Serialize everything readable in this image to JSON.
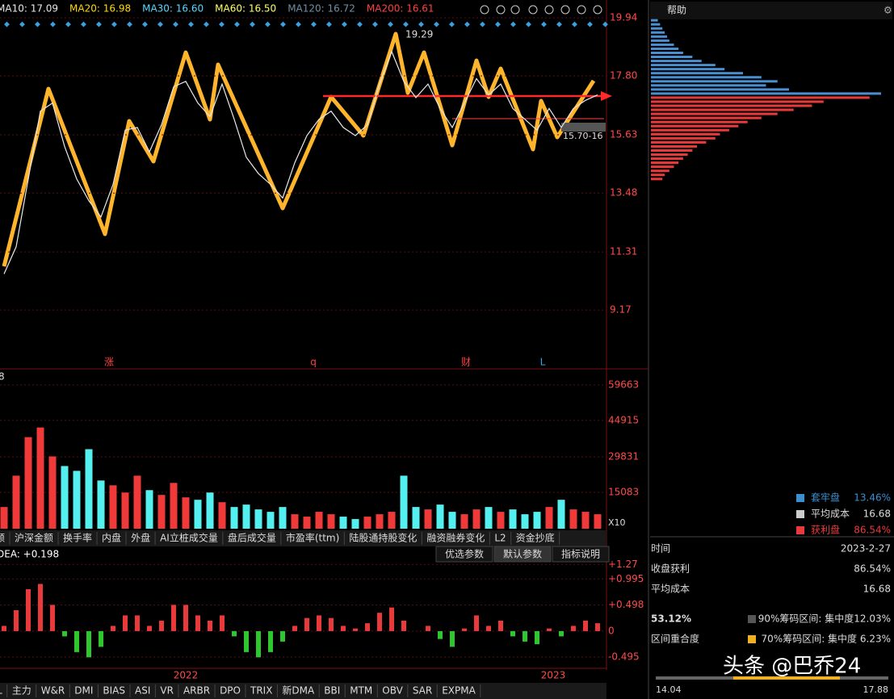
{
  "ma_legend": [
    {
      "label": "MA10: 17.09",
      "color": "#e8e8e8"
    },
    {
      "label": "MA20: 16.98",
      "color": "#ffd700"
    },
    {
      "label": "MA30: 16.60",
      "color": "#55d8ff"
    },
    {
      "label": "MA60: 16.50",
      "color": "#ffff66"
    },
    {
      "label": "MA120: 16.72",
      "color": "#6f8fa8"
    },
    {
      "label": "MA200: 16.61",
      "color": "#ff4040"
    }
  ],
  "price_axis": {
    "ylim": [
      7.06,
      20.45
    ],
    "yticks": [
      19.94,
      {
        "value": 17.8,
        "label": "17.80"
      },
      15.63,
      13.48,
      11.31,
      9.17
    ]
  },
  "price_panel": {
    "close": [
      10.5,
      11.5,
      14.0,
      16.5,
      16.8,
      15.2,
      14.0,
      13.2,
      12.6,
      13.8,
      15.8,
      15.9,
      15.0,
      16.0,
      17.4,
      17.6,
      16.8,
      16.3,
      17.5,
      16.2,
      14.8,
      14.2,
      13.8,
      13.3,
      14.6,
      15.6,
      16.2,
      16.5,
      15.9,
      15.6,
      16.0,
      17.5,
      18.7,
      17.6,
      17.0,
      17.5,
      16.6,
      15.9,
      16.8,
      17.7,
      17.1,
      17.5,
      16.6,
      16.2,
      15.8,
      16.6,
      15.9,
      16.6,
      16.9,
      17.1
    ],
    "high_label": "19.29",
    "low_label": "15.70-16",
    "event_markers": [
      "涨",
      "q",
      "财",
      "L"
    ]
  },
  "volume_panel": {
    "header": "8",
    "ylim": [
      0,
      66000
    ],
    "yticks": [
      59663,
      44915,
      29831,
      15083
    ],
    "values": [
      9000,
      22000,
      38000,
      42000,
      30000,
      26000,
      24000,
      33000,
      20000,
      18000,
      15000,
      22000,
      16000,
      14000,
      19000,
      13000,
      12000,
      15000,
      11000,
      9000,
      10000,
      8000,
      7000,
      9000,
      6000,
      5000,
      7000,
      6000,
      5000,
      4000,
      5000,
      6000,
      7000,
      22000,
      9000,
      8000,
      10000,
      7000,
      6000,
      8000,
      9000,
      7000,
      8000,
      6000,
      7000,
      9000,
      12000,
      8000,
      7000,
      6000
    ],
    "scale_label": "X10"
  },
  "indicator_tabs": [
    "额",
    "沪深金额",
    "换手率",
    "内盘",
    "外盘",
    "AI立桩成交量",
    "盘后成交量",
    "市盈率(ttm)",
    "陆股通持股变化",
    "融资融券变化",
    "L2",
    "资金抄底"
  ],
  "macd_panel": {
    "header": "DEA: +0.198",
    "buttons": [
      "优选参数",
      "默认参数",
      "指标说明"
    ],
    "ylim": [
      -0.71,
      1.6
    ],
    "yticks": [
      {
        "value": 1.27,
        "label": "+1.27"
      },
      {
        "value": 0.995,
        "label": "+0.995"
      },
      {
        "value": 0.498,
        "label": "+0.498"
      },
      0,
      -0.495
    ],
    "values": [
      0.1,
      0.4,
      0.8,
      0.9,
      0.5,
      -0.1,
      -0.4,
      -0.5,
      -0.3,
      0.1,
      0.3,
      0.3,
      0.1,
      0.2,
      0.5,
      0.5,
      0.3,
      0.2,
      0.3,
      -0.1,
      -0.4,
      -0.5,
      -0.4,
      -0.2,
      0.1,
      0.25,
      0.3,
      0.25,
      0.1,
      0.05,
      0.15,
      0.35,
      0.45,
      0.2,
      0.0,
      0.1,
      -0.15,
      -0.3,
      0.05,
      0.3,
      0.1,
      0.2,
      -0.1,
      -0.2,
      -0.25,
      0.05,
      -0.1,
      0.1,
      0.2,
      0.15
    ]
  },
  "x_axis": [
    "2022",
    "2023"
  ],
  "bottom_tabs": [
    "L",
    "主力",
    "W&R",
    "DMI",
    "BIAS",
    "ASI",
    "VR",
    "ARBR",
    "DPO",
    "TRIX",
    "新DMA",
    "BBI",
    "MTM",
    "OBV",
    "SAR",
    "EXPMA"
  ],
  "side_panel": {
    "title": "帮助",
    "chips": {
      "levels": [
        14.0,
        14.15,
        14.3,
        14.45,
        14.6,
        14.75,
        14.9,
        15.05,
        15.2,
        15.35,
        15.5,
        15.65,
        15.8,
        15.95,
        16.1,
        16.25,
        16.4,
        16.55,
        16.7,
        16.85,
        17.0,
        17.15,
        17.3,
        17.45,
        17.6,
        17.75,
        17.9,
        18.05,
        18.2,
        18.35,
        18.5,
        18.65,
        18.8,
        18.95,
        19.1,
        19.25,
        19.4,
        19.55,
        19.7,
        19.85
      ],
      "amounts": [
        5,
        6,
        8,
        10,
        12,
        14,
        16,
        18,
        20,
        24,
        28,
        30,
        34,
        38,
        42,
        48,
        55,
        62,
        70,
        75,
        95,
        100,
        60,
        50,
        55,
        48,
        40,
        32,
        28,
        22,
        18,
        14,
        12,
        10,
        8,
        7,
        6,
        5,
        4,
        3
      ],
      "split": 17.09
    },
    "legend": [
      {
        "name": "套牢盘",
        "value": "13.46%",
        "color": "#3a8fd0"
      },
      {
        "name": "平均成本",
        "value": "16.68",
        "color": "#cccccc"
      },
      {
        "name": "获利盘",
        "value": "86.54%",
        "color": "#e83a3a"
      }
    ],
    "rows": [
      [
        "时间",
        "2023-2-27"
      ],
      [
        "收盘获利",
        "86.54%"
      ],
      [
        "平均成本",
        "16.68"
      ]
    ],
    "concentration": "53.12%",
    "range90": "90%筹码区间: 集中度12.03%",
    "overlap": "区间重合度",
    "range70": "70%筹码区间: 集中度 6.23%",
    "low": "14.04",
    "high": "17.88"
  },
  "watermark": "头条 @巴乔24"
}
